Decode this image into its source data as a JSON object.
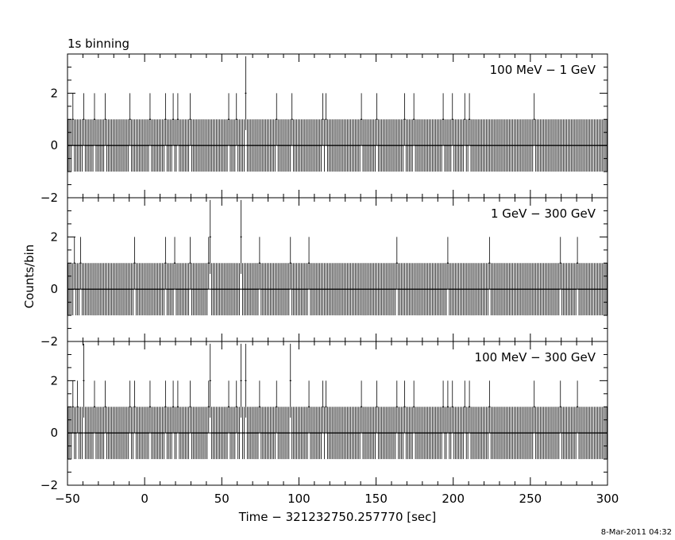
{
  "chart_data": {
    "type": "bar",
    "title": "1s binning",
    "xlabel": "Time − 321232750.257770 [sec]",
    "ylabel": "Counts/bin",
    "xlim": [
      -50,
      300
    ],
    "ylim": [
      -2,
      3.5
    ],
    "bin_width": 1,
    "x_ticks": [
      -50,
      0,
      50,
      100,
      150,
      200,
      250,
      300
    ],
    "x_tick_labels": [
      "−50",
      "0",
      "50",
      "100",
      "150",
      "200",
      "250",
      "300"
    ],
    "y_ticks": [
      -2,
      0,
      2
    ],
    "y_tick_labels": [
      "−2",
      "0",
      "2"
    ],
    "footer_timestamp": "8-Mar-2011 04:32",
    "panels": [
      {
        "label": "100 MeV − 1 GeV",
        "events": [
          {
            "t": -47,
            "c": 1
          },
          {
            "t": -40,
            "c": 1
          },
          {
            "t": -33,
            "c": 1
          },
          {
            "t": -26,
            "c": 1
          },
          {
            "t": -10,
            "c": 1
          },
          {
            "t": 3,
            "c": 1
          },
          {
            "t": 13,
            "c": 1
          },
          {
            "t": 18,
            "c": 1
          },
          {
            "t": 21,
            "c": 1
          },
          {
            "t": 29,
            "c": 1
          },
          {
            "t": 54,
            "c": 1
          },
          {
            "t": 59,
            "c": 1
          },
          {
            "t": 65,
            "c": 2
          },
          {
            "t": 85,
            "c": 1
          },
          {
            "t": 95,
            "c": 1
          },
          {
            "t": 115,
            "c": 1
          },
          {
            "t": 117,
            "c": 1
          },
          {
            "t": 140,
            "c": 1
          },
          {
            "t": 150,
            "c": 1
          },
          {
            "t": 168,
            "c": 1
          },
          {
            "t": 174,
            "c": 1
          },
          {
            "t": 193,
            "c": 1
          },
          {
            "t": 199,
            "c": 1
          },
          {
            "t": 207,
            "c": 1
          },
          {
            "t": 210,
            "c": 1
          },
          {
            "t": 252,
            "c": 1
          }
        ]
      },
      {
        "label": "1 GeV − 300 GeV",
        "events": [
          {
            "t": -46,
            "c": 1
          },
          {
            "t": -42,
            "c": 1
          },
          {
            "t": -7,
            "c": 1
          },
          {
            "t": 13,
            "c": 1
          },
          {
            "t": 19,
            "c": 1
          },
          {
            "t": 29,
            "c": 1
          },
          {
            "t": 41,
            "c": 1
          },
          {
            "t": 42,
            "c": 2
          },
          {
            "t": 62,
            "c": 2
          },
          {
            "t": 74,
            "c": 1
          },
          {
            "t": 94,
            "c": 1
          },
          {
            "t": 106,
            "c": 1
          },
          {
            "t": 163,
            "c": 1
          },
          {
            "t": 196,
            "c": 1
          },
          {
            "t": 223,
            "c": 1
          },
          {
            "t": 269,
            "c": 1
          },
          {
            "t": 280,
            "c": 1
          }
        ]
      },
      {
        "label": "100 MeV − 300 GeV",
        "events": [
          {
            "t": -47,
            "c": 1
          },
          {
            "t": -44,
            "c": 1
          },
          {
            "t": -40,
            "c": 2
          },
          {
            "t": -33,
            "c": 1
          },
          {
            "t": -26,
            "c": 1
          },
          {
            "t": -10,
            "c": 1
          },
          {
            "t": -7,
            "c": 1
          },
          {
            "t": 3,
            "c": 1
          },
          {
            "t": 13,
            "c": 1
          },
          {
            "t": 18,
            "c": 1
          },
          {
            "t": 21,
            "c": 1
          },
          {
            "t": 29,
            "c": 1
          },
          {
            "t": 41,
            "c": 1
          },
          {
            "t": 42,
            "c": 2
          },
          {
            "t": 54,
            "c": 1
          },
          {
            "t": 59,
            "c": 1
          },
          {
            "t": 62,
            "c": 2
          },
          {
            "t": 65,
            "c": 2
          },
          {
            "t": 74,
            "c": 1
          },
          {
            "t": 85,
            "c": 1
          },
          {
            "t": 94,
            "c": 2
          },
          {
            "t": 106,
            "c": 1
          },
          {
            "t": 115,
            "c": 1
          },
          {
            "t": 117,
            "c": 1
          },
          {
            "t": 140,
            "c": 1
          },
          {
            "t": 150,
            "c": 1
          },
          {
            "t": 163,
            "c": 1
          },
          {
            "t": 168,
            "c": 1
          },
          {
            "t": 174,
            "c": 1
          },
          {
            "t": 193,
            "c": 1
          },
          {
            "t": 196,
            "c": 1
          },
          {
            "t": 199,
            "c": 1
          },
          {
            "t": 207,
            "c": 1
          },
          {
            "t": 210,
            "c": 1
          },
          {
            "t": 223,
            "c": 1
          },
          {
            "t": 252,
            "c": 1
          },
          {
            "t": 269,
            "c": 1
          },
          {
            "t": 280,
            "c": 1
          }
        ]
      }
    ]
  }
}
